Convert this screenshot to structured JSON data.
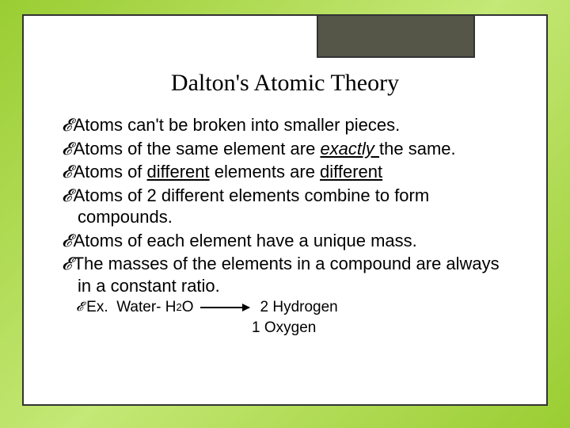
{
  "title": "Dalton's Atomic Theory",
  "bullets": {
    "b1": "Atoms can't be broken into smaller pieces.",
    "b2_pre": "Atoms of the same element are ",
    "b2_u": "exactly ",
    "b2_post": "the same.",
    "b3_pre": "Atoms of ",
    "b3_u1": "different",
    "b3_mid": " elements are ",
    "b3_u2": "different",
    "b4": "Atoms of 2 different elements combine to form compounds.",
    "b5": "Atoms of each element have a unique mass.",
    "b6": "The masses of the elements in a compound are always in a constant ratio."
  },
  "example": {
    "label": "Ex.",
    "prefix": "Water- H",
    "sub": "2",
    "suffix": "O",
    "result1": "2 Hydrogen",
    "result2": "1 Oxygen"
  },
  "style": {
    "bg_gradient_start": "#9acd32",
    "bg_gradient_mid": "#c5e876",
    "frame_bg": "#ffffff",
    "frame_border": "#333333",
    "tab_bg": "#555548",
    "title_fontsize": 30,
    "body_fontsize": 22,
    "sub_fontsize": 19,
    "text_color": "#000000"
  }
}
